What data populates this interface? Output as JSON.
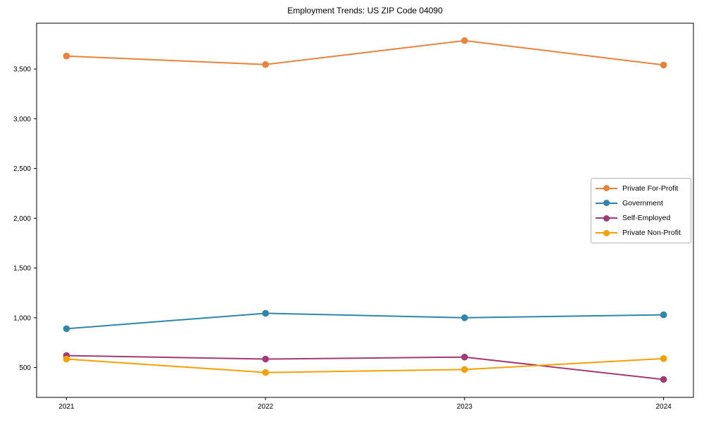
{
  "chart_data": {
    "type": "line",
    "title": "Employment Trends: US ZIP Code 04090",
    "xlabel": "",
    "ylabel": "",
    "x": [
      2021,
      2022,
      2023,
      2024
    ],
    "xticks": [
      2021,
      2022,
      2023,
      2024
    ],
    "yticks": [
      500,
      1000,
      1500,
      2000,
      2500,
      3000,
      3500
    ],
    "xlim": [
      2020.85,
      2024.15
    ],
    "ylim": [
      200,
      3960
    ],
    "grid": false,
    "legend_position": "center-right",
    "marker": "circle",
    "series": [
      {
        "name": "Private For-Profit",
        "color": "#E8833C",
        "values": [
          3630,
          3545,
          3785,
          3540
        ]
      },
      {
        "name": "Government",
        "color": "#2E86AB",
        "values": [
          890,
          1045,
          1000,
          1030
        ]
      },
      {
        "name": "Self-Employed",
        "color": "#A23B72",
        "values": [
          620,
          585,
          605,
          380
        ]
      },
      {
        "name": "Private Non-Profit",
        "color": "#F5A104",
        "values": [
          585,
          450,
          480,
          590
        ]
      }
    ],
    "axis_color": "#000000"
  }
}
